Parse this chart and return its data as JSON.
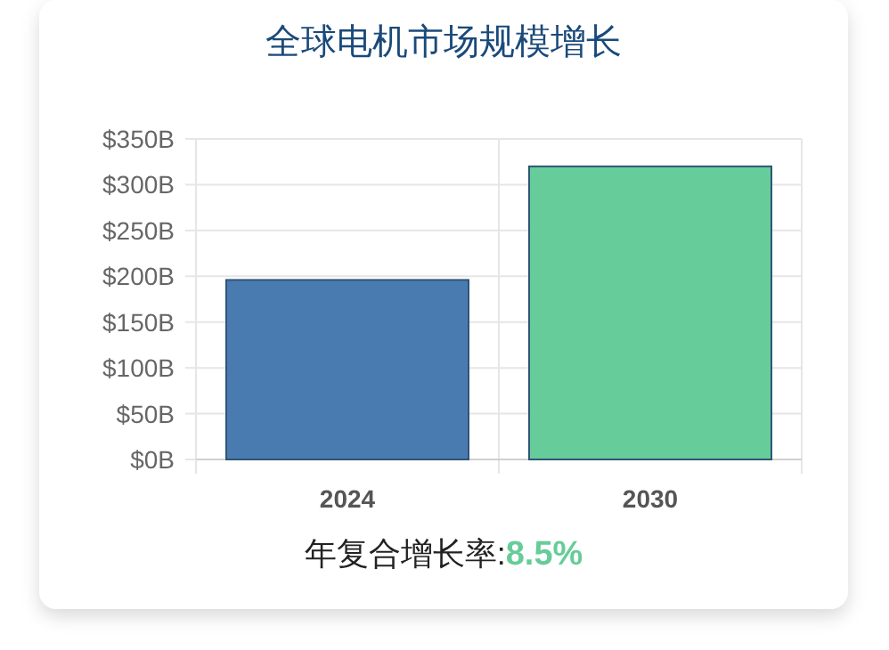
{
  "chart_data": {
    "type": "bar",
    "title": "全球电机市场规模增长",
    "categories": [
      "2024",
      "2030"
    ],
    "values": [
      196,
      320
    ],
    "colors": [
      "#4a7bb0",
      "#66cc99"
    ],
    "ylim": [
      0,
      350
    ],
    "yticks": [
      {
        "value": 0,
        "label": "$0B"
      },
      {
        "value": 50,
        "label": "$50B"
      },
      {
        "value": 100,
        "label": "$100B"
      },
      {
        "value": 150,
        "label": "$150B"
      },
      {
        "value": 200,
        "label": "$200B"
      },
      {
        "value": 250,
        "label": "$250B"
      },
      {
        "value": 300,
        "label": "$300B"
      },
      {
        "value": 350,
        "label": "$350B"
      }
    ],
    "grid": true,
    "annotations": [
      "年复合增长率:",
      "8.5%"
    ]
  }
}
